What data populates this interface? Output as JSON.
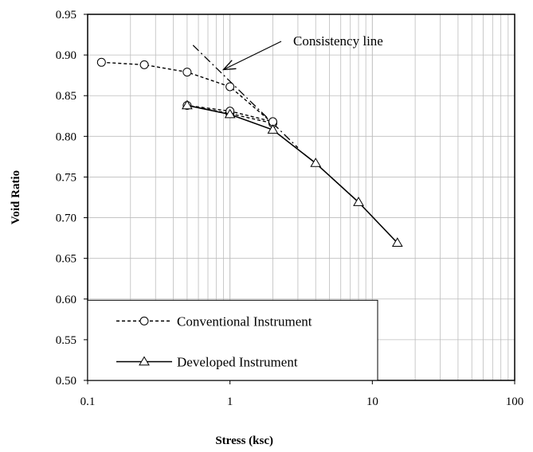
{
  "chart_data": {
    "type": "scatter",
    "xlabel": "Stress (ksc)",
    "ylabel": "Void Ratio",
    "xscale": "log",
    "xlim": [
      0.1,
      100
    ],
    "ylim": [
      0.5,
      0.95
    ],
    "x_ticks": [
      "0.1",
      "1",
      "10",
      "100"
    ],
    "y_ticks": [
      "0.50",
      "0.55",
      "0.60",
      "0.65",
      "0.70",
      "0.75",
      "0.80",
      "0.85",
      "0.90",
      "0.95"
    ],
    "grid": true,
    "legend_position": "bottom-left",
    "series": [
      {
        "name": "Conventional Instrument",
        "marker": "circle",
        "line_style": "dashed",
        "color": "#000000",
        "points": [
          {
            "x": 0.125,
            "y": 0.891
          },
          {
            "x": 0.25,
            "y": 0.888
          },
          {
            "x": 0.5,
            "y": 0.879
          },
          {
            "x": 1.0,
            "y": 0.861
          },
          {
            "x": 2.0,
            "y": 0.816
          },
          {
            "x": 1.0,
            "y": 0.828
          },
          {
            "x": 0.5,
            "y": 0.838
          },
          {
            "x": 1.0,
            "y": 0.831
          },
          {
            "x": 2.0,
            "y": 0.818
          }
        ]
      },
      {
        "name": "Developed Instrument",
        "marker": "triangle",
        "line_style": "solid",
        "color": "#000000",
        "points": [
          {
            "x": 0.5,
            "y": 0.838
          },
          {
            "x": 1.0,
            "y": 0.827
          },
          {
            "x": 2.0,
            "y": 0.808
          },
          {
            "x": 4.0,
            "y": 0.767
          },
          {
            "x": 8.0,
            "y": 0.719
          },
          {
            "x": 15.0,
            "y": 0.669
          }
        ]
      }
    ],
    "reference_lines": [
      {
        "label": "Consistency line",
        "line_style": "dash-dot",
        "points": [
          {
            "x": 0.55,
            "y": 0.912
          },
          {
            "x": 3.0,
            "y": 0.786
          }
        ]
      }
    ],
    "annotations": [
      {
        "text": "Consistency line",
        "arrow_to": {
          "x": 0.9,
          "y": 0.882
        }
      }
    ]
  }
}
